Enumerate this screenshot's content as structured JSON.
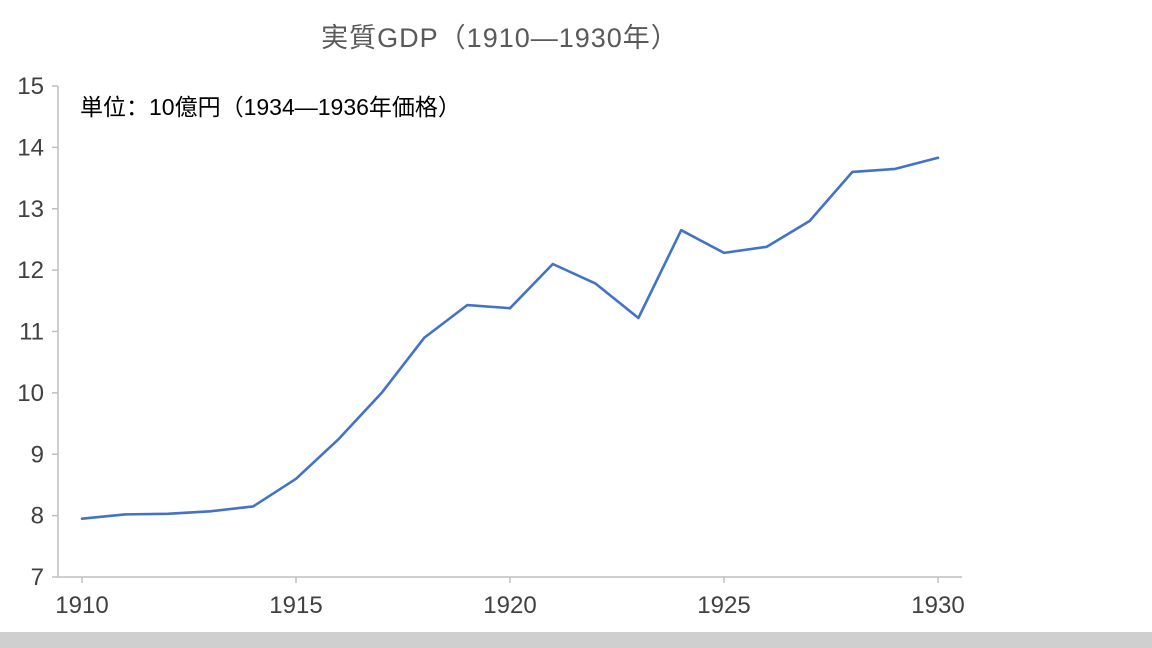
{
  "chart_data": {
    "type": "line",
    "title": "実質GDP（1910—1930年）",
    "annotation": "単位：10億円（1934—1936年価格）",
    "x": [
      1910,
      1911,
      1912,
      1913,
      1914,
      1915,
      1916,
      1917,
      1918,
      1919,
      1920,
      1921,
      1922,
      1923,
      1924,
      1925,
      1926,
      1927,
      1928,
      1929,
      1930
    ],
    "series": [
      {
        "name": "実質GDP",
        "values": [
          7.95,
          8.02,
          8.03,
          8.07,
          8.15,
          8.6,
          9.25,
          10.0,
          10.9,
          11.43,
          11.38,
          12.1,
          11.78,
          11.22,
          12.65,
          12.28,
          12.38,
          12.8,
          13.6,
          13.65,
          13.83
        ]
      }
    ],
    "xlabel": "",
    "ylabel": "",
    "ylim": [
      7,
      15
    ],
    "xlim": [
      1910,
      1930
    ],
    "y_ticks": [
      7,
      8,
      9,
      10,
      11,
      12,
      13,
      14,
      15
    ],
    "x_ticks": [
      1910,
      1915,
      1920,
      1925,
      1930
    ],
    "grid": false,
    "legend": false,
    "line_color": "#4472C4",
    "axis_color": "#BFBFBF",
    "tick_label_color": "#404040",
    "title_color": "#595959",
    "annotation_color": "#000000"
  }
}
